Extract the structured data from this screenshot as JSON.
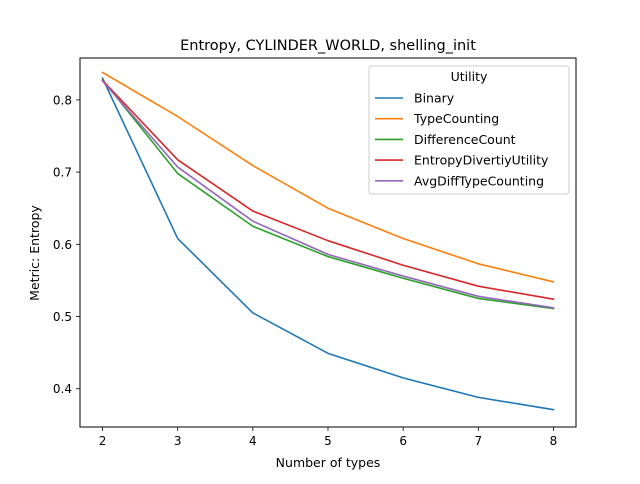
{
  "chart_data": {
    "type": "line",
    "title": "Entropy, CYLINDER_WORLD, shelling_init",
    "xlabel": "Number of types",
    "ylabel": "Metric: Entropy",
    "x": [
      2,
      3,
      4,
      5,
      6,
      7,
      8
    ],
    "xlim": [
      1.7,
      8.3
    ],
    "ylim": [
      0.347,
      0.858
    ],
    "xticks": [
      "2",
      "3",
      "4",
      "5",
      "6",
      "7",
      "8"
    ],
    "yticks": [
      {
        "value": 0.4,
        "label": "0.4"
      },
      {
        "value": 0.5,
        "label": "0.5"
      },
      {
        "value": 0.6,
        "label": "0.6"
      },
      {
        "value": 0.7,
        "label": "0.7"
      },
      {
        "value": 0.8,
        "label": "0.8"
      }
    ],
    "grid": false,
    "legend": {
      "title": "Utility",
      "placement": "top-right"
    },
    "series": [
      {
        "name": "Binary",
        "color": "#1f77b4",
        "values": [
          0.83,
          0.608,
          0.505,
          0.449,
          0.415,
          0.388,
          0.371
        ]
      },
      {
        "name": "TypeCounting",
        "color": "#ff7f0e",
        "values": [
          0.838,
          0.777,
          0.709,
          0.65,
          0.608,
          0.573,
          0.548
        ]
      },
      {
        "name": "DifferenceCount",
        "color": "#2ca02c",
        "values": [
          0.828,
          0.698,
          0.625,
          0.583,
          0.553,
          0.525,
          0.511
        ]
      },
      {
        "name": "EntropyDivertiyUtility",
        "color": "#d62728",
        "values": [
          0.827,
          0.717,
          0.646,
          0.605,
          0.571,
          0.542,
          0.524
        ]
      },
      {
        "name": "AvgDiffTypeCounting",
        "color": "#9467bd",
        "values": [
          0.826,
          0.707,
          0.632,
          0.586,
          0.556,
          0.528,
          0.512
        ]
      }
    ]
  }
}
